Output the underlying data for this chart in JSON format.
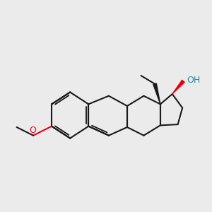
{
  "bg_color": "#ebebeb",
  "bond_color": "#1a1a1a",
  "o_color": "#e8000e",
  "oh_color": "#2e8b8b",
  "figsize": [
    3.0,
    3.0
  ],
  "dpi": 100,
  "bond_lw": 1.5,
  "font_size": 9
}
